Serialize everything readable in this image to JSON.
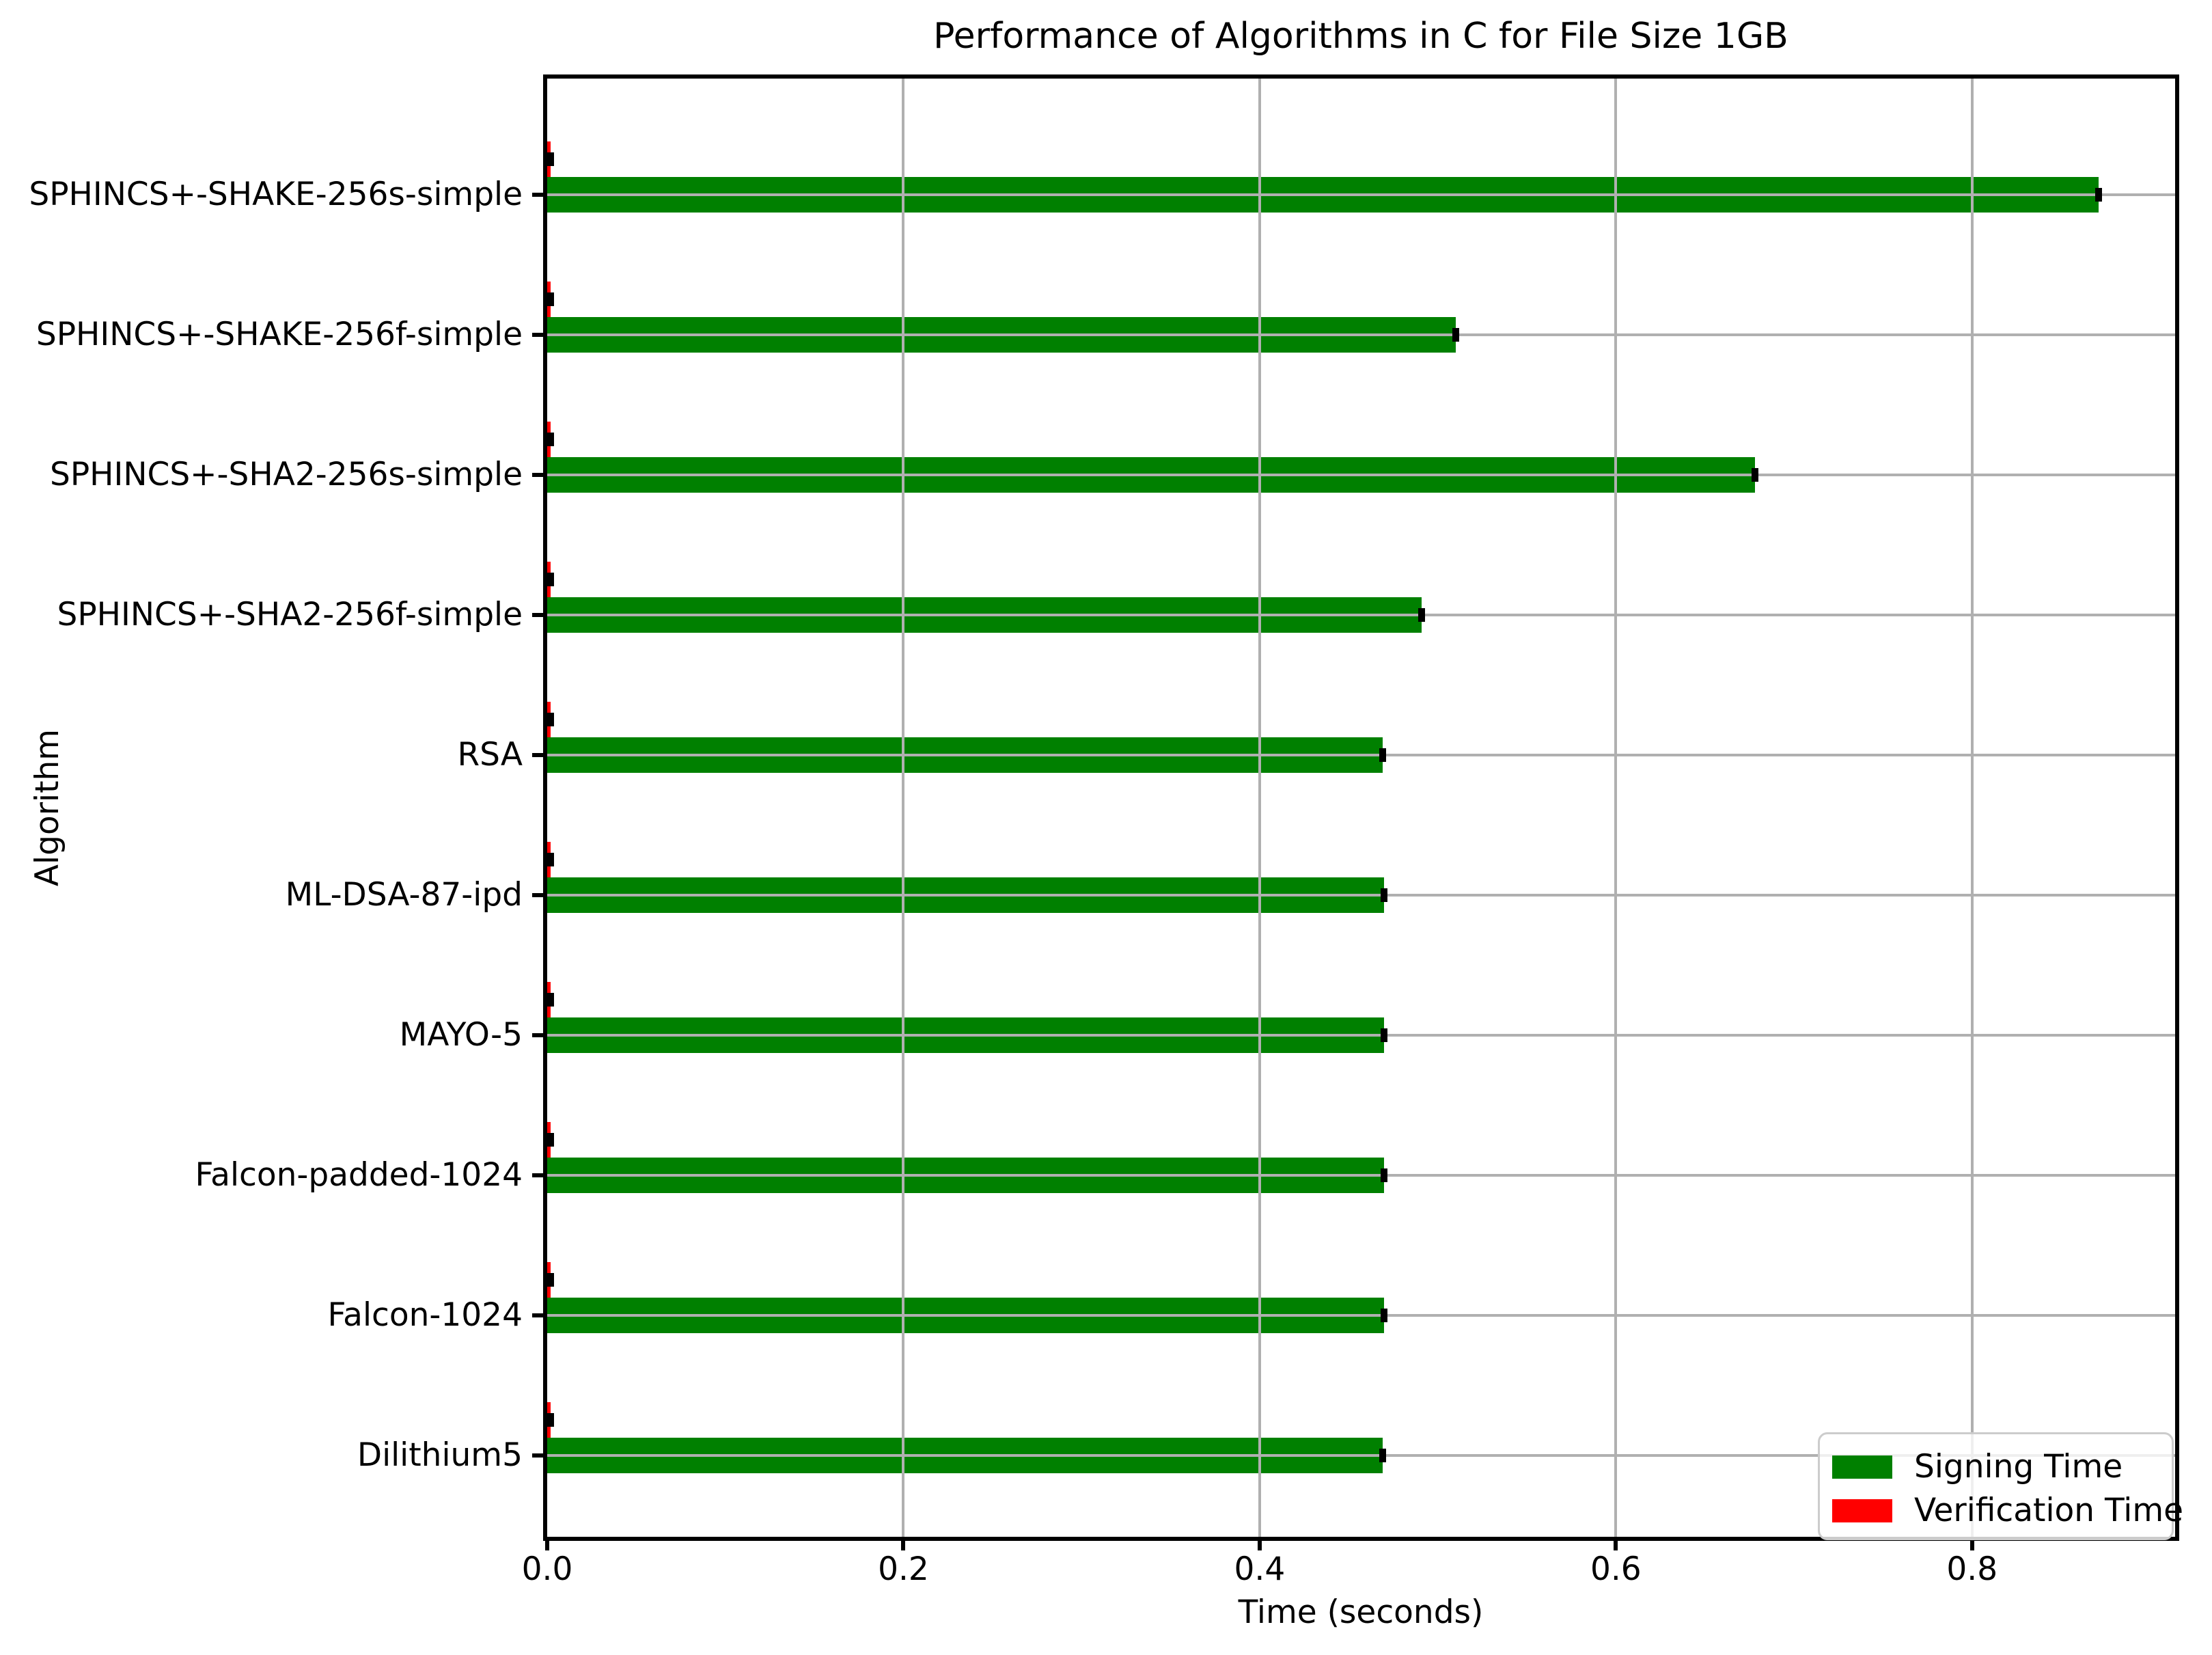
{
  "chart_data": {
    "type": "bar",
    "orientation": "horizontal",
    "title": "Performance of Algorithms in C for File Size 1GB",
    "xlabel": "Time (seconds)",
    "ylabel": "Algorithm",
    "grid": true,
    "legend_position": "lower right",
    "xlim": [
      0,
      0.914
    ],
    "xticks": [
      0.0,
      0.2,
      0.4,
      0.6,
      0.8
    ],
    "xtick_labels": [
      "0.0",
      "0.2",
      "0.4",
      "0.6",
      "0.8"
    ],
    "categories_top_to_bottom": [
      "SPHINCS+-SHAKE-256s-simple",
      "SPHINCS+-SHAKE-256f-simple",
      "SPHINCS+-SHA2-256s-simple",
      "SPHINCS+-SHA2-256f-simple",
      "RSA",
      "ML-DSA-87-ipd",
      "MAYO-5",
      "Falcon-padded-1024",
      "Falcon-1024",
      "Dilithium5"
    ],
    "series": [
      {
        "name": "Signing Time",
        "color": "#008000",
        "values": [
          0.871,
          0.51,
          0.678,
          0.491,
          0.469,
          0.47,
          0.47,
          0.47,
          0.47,
          0.469
        ],
        "xerr": 0.003
      },
      {
        "name": "Verification Time",
        "color": "#ff0000",
        "values": [
          0.002,
          0.002,
          0.002,
          0.002,
          0.002,
          0.002,
          0.002,
          0.002,
          0.002,
          0.002
        ],
        "xerr": 0.001
      }
    ]
  },
  "legend": {
    "items": [
      {
        "label": "Signing Time",
        "color": "#008000"
      },
      {
        "label": "Verification Time",
        "color": "#ff0000"
      }
    ]
  },
  "colors": {
    "background": "#ffffff",
    "grid": "#b0b0b0",
    "axis": "#000000",
    "error_bar": "#000000",
    "signing": "#008000",
    "verification": "#ff0000"
  }
}
